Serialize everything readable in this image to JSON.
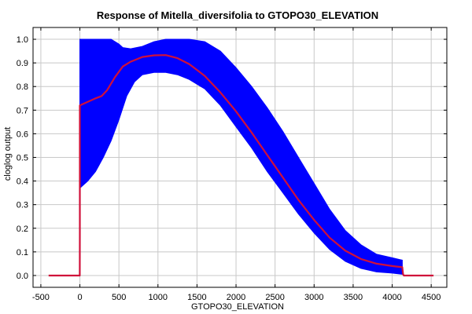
{
  "chart_data": {
    "type": "line",
    "title": "Response of Mitella_diversifolia to GTOPO30_ELEVATION",
    "xlabel": "GTOPO30_ELEVATION",
    "ylabel": "cloglog output",
    "xlim": [
      -600,
      4700
    ],
    "ylim": [
      -0.05,
      1.05
    ],
    "xticks": [
      -500,
      0,
      500,
      1000,
      1500,
      2000,
      2500,
      3000,
      3500,
      4000,
      4500
    ],
    "yticks": [
      0.0,
      0.1,
      0.2,
      0.3,
      0.4,
      0.5,
      0.6,
      0.7,
      0.8,
      0.9,
      1.0
    ],
    "grid": true,
    "colors": {
      "band": "#0000ff",
      "mean": "#d0103a"
    },
    "series": [
      {
        "role": "mean",
        "x": [
          -400,
          -1,
          0,
          0,
          100,
          200,
          280,
          350,
          450,
          550,
          650,
          800,
          950,
          1100,
          1250,
          1400,
          1600,
          1800,
          2000,
          2200,
          2400,
          2600,
          2800,
          3000,
          3200,
          3400,
          3600,
          3800,
          4000,
          4130,
          4140,
          4150,
          4530
        ],
        "y": [
          0.0,
          0.0,
          0.19,
          0.72,
          0.735,
          0.75,
          0.76,
          0.785,
          0.84,
          0.885,
          0.905,
          0.925,
          0.932,
          0.933,
          0.92,
          0.895,
          0.845,
          0.775,
          0.695,
          0.605,
          0.51,
          0.415,
          0.32,
          0.235,
          0.16,
          0.105,
          0.07,
          0.05,
          0.04,
          0.035,
          0.005,
          0.0,
          0.0
        ]
      },
      {
        "role": "upper",
        "x": [
          0,
          400,
          500,
          550,
          650,
          800,
          950,
          1100,
          1250,
          1400,
          1600,
          1800,
          2000,
          2200,
          2400,
          2600,
          2800,
          3000,
          3200,
          3400,
          3600,
          3800,
          4000,
          4130
        ],
        "y": [
          1.0,
          1.0,
          0.98,
          0.965,
          0.96,
          0.97,
          0.99,
          1.0,
          1.0,
          1.0,
          0.99,
          0.95,
          0.88,
          0.8,
          0.71,
          0.61,
          0.5,
          0.39,
          0.28,
          0.19,
          0.13,
          0.09,
          0.075,
          0.065
        ]
      },
      {
        "role": "lower",
        "x": [
          0,
          100,
          200,
          300,
          400,
          500,
          600,
          700,
          800,
          950,
          1100,
          1250,
          1400,
          1600,
          1800,
          2000,
          2200,
          2400,
          2600,
          2800,
          3000,
          3200,
          3400,
          3600,
          3800,
          4000,
          4130
        ],
        "y": [
          0.37,
          0.4,
          0.44,
          0.5,
          0.57,
          0.66,
          0.76,
          0.82,
          0.85,
          0.86,
          0.86,
          0.85,
          0.83,
          0.79,
          0.72,
          0.63,
          0.54,
          0.44,
          0.35,
          0.26,
          0.18,
          0.11,
          0.06,
          0.03,
          0.015,
          0.01,
          0.005
        ]
      }
    ]
  }
}
